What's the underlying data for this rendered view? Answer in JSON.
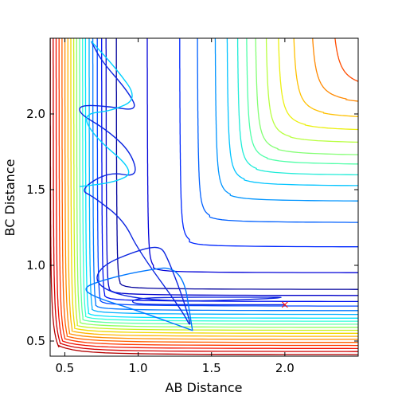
{
  "chart_data": {
    "type": "line",
    "subtype": "contour",
    "title": "",
    "xlabel": "AB Distance",
    "ylabel": "BC Distance",
    "xlim": [
      0.4,
      2.5
    ],
    "ylim": [
      0.4,
      2.5
    ],
    "x_ticks": [
      0.5,
      1.0,
      1.5,
      2.0
    ],
    "y_ticks": [
      0.5,
      1.0,
      1.5,
      2.0
    ],
    "x_tick_labels": [
      "0.5",
      "1.0",
      "1.5",
      "2.0"
    ],
    "y_tick_labels": [
      "0.5",
      "1.0",
      "1.5",
      "2.0"
    ],
    "grid": false,
    "legend": "none",
    "contours": {
      "colormap": "jet",
      "levels": [
        {
          "a": 0.4,
          "b": 0.41,
          "color": "#b40000"
        },
        {
          "a": 0.42,
          "b": 0.43,
          "color": "#d40000"
        },
        {
          "a": 0.44,
          "b": 0.45,
          "color": "#f01000"
        },
        {
          "a": 0.46,
          "b": 0.47,
          "color": "#ff3800"
        },
        {
          "a": 0.48,
          "b": 0.49,
          "color": "#ff6000"
        },
        {
          "a": 0.5,
          "b": 0.51,
          "color": "#ff8a00"
        },
        {
          "a": 0.52,
          "b": 0.53,
          "color": "#ffb400"
        },
        {
          "a": 0.54,
          "b": 0.55,
          "color": "#f0d800"
        },
        {
          "a": 0.56,
          "b": 0.57,
          "color": "#c8f020"
        },
        {
          "a": 0.58,
          "b": 0.59,
          "color": "#90ff60"
        },
        {
          "a": 0.6,
          "b": 0.61,
          "color": "#60ffa0"
        },
        {
          "a": 0.62,
          "b": 0.63,
          "color": "#30ffd8"
        },
        {
          "a": 0.64,
          "b": 0.65,
          "color": "#00e4ff"
        },
        {
          "a": 0.665,
          "b": 0.675,
          "color": "#00b0ff"
        },
        {
          "a": 0.69,
          "b": 0.7,
          "color": "#0078ff"
        },
        {
          "a": 0.72,
          "b": 0.73,
          "color": "#0044ff"
        },
        {
          "a": 0.75,
          "b": 0.76,
          "color": "#0010f0"
        },
        {
          "a": 0.78,
          "b": 0.8,
          "color": "#0000c8"
        },
        {
          "a": 0.85,
          "b": 0.84,
          "color": "#00009c"
        },
        {
          "a": 1.06,
          "b": 0.95,
          "color": "#0000d8"
        },
        {
          "a": 1.28,
          "b": 1.12,
          "color": "#0028ff"
        },
        {
          "a": 1.4,
          "b": 1.28,
          "color": "#0060ff"
        },
        {
          "a": 1.52,
          "b": 1.42,
          "color": "#0094ff"
        },
        {
          "a": 1.6,
          "b": 1.52,
          "color": "#00c4ff"
        },
        {
          "a": 1.67,
          "b": 1.59,
          "color": "#20ecd8"
        },
        {
          "a": 1.73,
          "b": 1.66,
          "color": "#50ffa8"
        },
        {
          "a": 1.79,
          "b": 1.72,
          "color": "#84ff74"
        },
        {
          "a": 1.86,
          "b": 1.8,
          "color": "#b8ff40"
        },
        {
          "a": 1.94,
          "b": 1.88,
          "color": "#ecf010"
        },
        {
          "a": 2.04,
          "b": 1.96,
          "color": "#ffc000"
        },
        {
          "a": 2.16,
          "b": 2.05,
          "color": "#ff8800"
        },
        {
          "a": 2.3,
          "b": 2.14,
          "color": "#ff4c00"
        },
        {
          "a": 2.46,
          "b": 2.24,
          "color": "#ec1200"
        },
        {
          "a": 2.62,
          "b": 2.34,
          "color": "#b80000"
        },
        {
          "a": 2.8,
          "b": 2.46,
          "color": "#8a0000"
        }
      ]
    },
    "series": [
      {
        "color": "#0a24e0",
        "points": [
          [
            2.0,
            0.74
          ],
          [
            1.1,
            0.74
          ],
          [
            0.95,
            0.75
          ],
          [
            0.98,
            0.78
          ],
          [
            1.2,
            0.79
          ],
          [
            1.9,
            0.79
          ],
          [
            2.0,
            0.79
          ],
          [
            1.9,
            0.78
          ],
          [
            1.3,
            0.76
          ],
          [
            0.9,
            0.79
          ],
          [
            0.7,
            0.88
          ],
          [
            0.75,
            1.0
          ],
          [
            1.0,
            1.1
          ],
          [
            1.15,
            1.13
          ],
          [
            1.2,
            1.05
          ],
          [
            1.3,
            0.8
          ],
          [
            1.37,
            0.57
          ],
          [
            1.3,
            0.7
          ],
          [
            1.0,
            1.1
          ],
          [
            0.9,
            1.3
          ],
          [
            0.7,
            1.45
          ],
          [
            0.6,
            1.5
          ],
          [
            0.8,
            1.62
          ],
          [
            1.0,
            1.58
          ],
          [
            0.95,
            1.75
          ],
          [
            0.78,
            1.9
          ],
          [
            0.6,
            2.0
          ],
          [
            0.6,
            2.06
          ],
          [
            0.8,
            2.05
          ],
          [
            1.0,
            2.02
          ],
          [
            0.93,
            2.15
          ],
          [
            0.75,
            2.35
          ],
          [
            0.68,
            2.48
          ]
        ]
      },
      {
        "color": "#0078ff",
        "points": [
          [
            1.37,
            0.57
          ],
          [
            1.0,
            0.7
          ],
          [
            0.7,
            0.79
          ],
          [
            0.62,
            0.85
          ],
          [
            0.75,
            0.9
          ],
          [
            1.0,
            0.96
          ],
          [
            1.3,
            1.0
          ],
          [
            1.37,
            0.57
          ]
        ]
      },
      {
        "color": "#00d0ff",
        "points": [
          [
            0.68,
            2.48
          ],
          [
            0.85,
            2.3
          ],
          [
            1.0,
            2.1
          ],
          [
            0.82,
            2.02
          ],
          [
            0.62,
            2.0
          ],
          [
            0.7,
            1.85
          ],
          [
            0.98,
            1.62
          ],
          [
            0.85,
            1.55
          ],
          [
            0.6,
            1.52
          ]
        ]
      }
    ],
    "markers": [
      {
        "x": 2.0,
        "y": 0.74,
        "symbol": "x",
        "color": "#ff0000"
      }
    ]
  }
}
